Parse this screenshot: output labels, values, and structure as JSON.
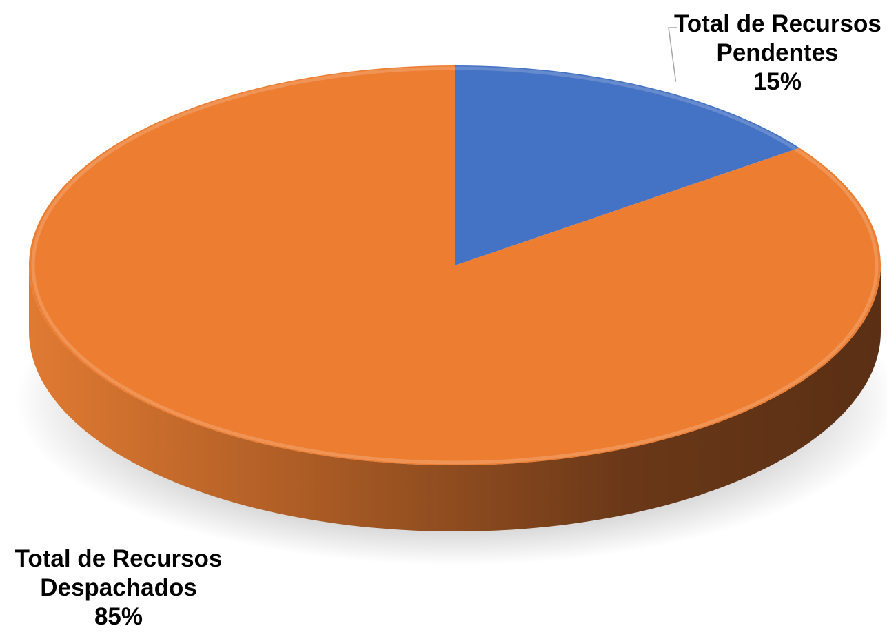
{
  "chart_data": {
    "type": "pie",
    "style": "3d",
    "slices": [
      {
        "name": "Total de Recursos Pendentes",
        "line1": "Total de Recursos",
        "line2": "Pendentes",
        "value": 15,
        "label": "15%",
        "color": "#4472C4"
      },
      {
        "name": "Total de Recursos Despachados",
        "line1": "Total de Recursos",
        "line2": "Despachados",
        "value": 85,
        "label": "85%",
        "color": "#ED7D31"
      }
    ],
    "start_angle": "12 o'clock",
    "direction": "clockwise",
    "legend": "none",
    "data_labels": "category name and percentage"
  }
}
